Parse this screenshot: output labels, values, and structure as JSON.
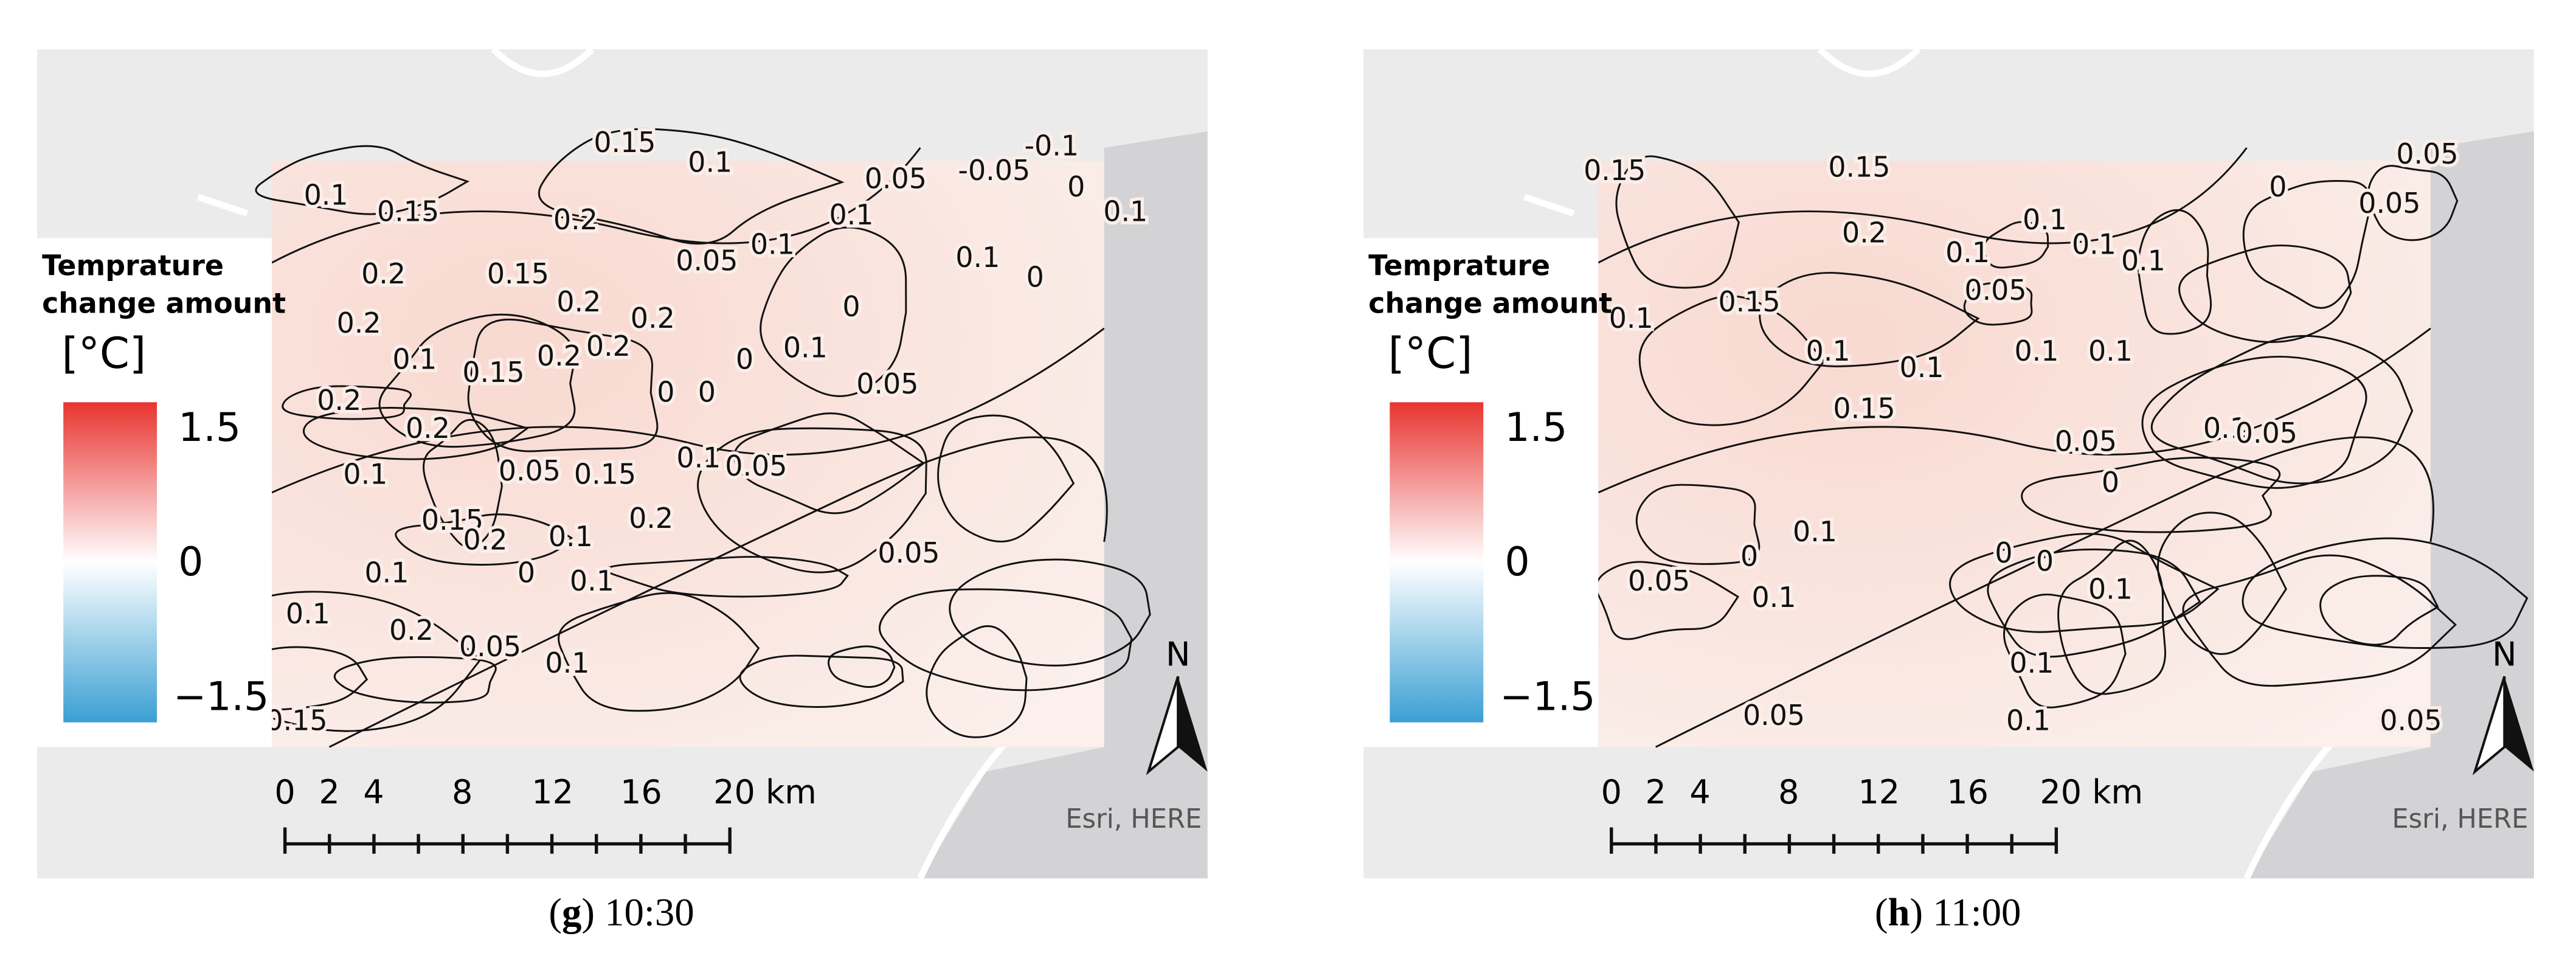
{
  "panels": [
    {
      "caption": [
        "(",
        "g",
        ")",
        " 10:30"
      ],
      "legend": {
        "title": [
          "Temprature",
          "change amount"
        ],
        "unit": "[°C]",
        "ticks": [
          "1.5",
          "0",
          "−1.5"
        ]
      },
      "scale": [
        "0",
        "2",
        "4",
        "8",
        "12",
        "16",
        "20 km"
      ],
      "north": "N",
      "attribution": "Esri, HERE",
      "contour_labels": [
        "0.15",
        "0.1",
        "0.05",
        "-0.05",
        "-0.1",
        "0",
        "0.1",
        "0.1",
        "0.15",
        "0.2",
        "0.2",
        "0.15",
        "0.2",
        "0.2",
        "0.05",
        "0.1",
        "0.1",
        "0.1",
        "0",
        "0",
        "0.2",
        "0.1",
        "0.15",
        "0.2",
        "0.2",
        "0",
        "0.1",
        "0.05",
        "0",
        "0",
        "0.2",
        "0.2",
        "0.1",
        "0.05",
        "0.15",
        "0.2",
        "0.1",
        "0.05",
        "0.15",
        "0.2",
        "0.1",
        "0.1",
        "0",
        "0.1",
        "0.05",
        "0.1",
        "0.2",
        "0.05",
        "0.1",
        "0.15"
      ]
    },
    {
      "caption": [
        "(",
        "h",
        ")",
        " 11:00"
      ],
      "legend": {
        "title": [
          "Temprature",
          "change amount"
        ],
        "unit": "[°C]",
        "ticks": [
          "1.5",
          "0",
          "−1.5"
        ]
      },
      "scale": [
        "0",
        "2",
        "4",
        "8",
        "12",
        "16",
        "20 km"
      ],
      "north": "N",
      "attribution": "Esri, HERE",
      "contour_labels": [
        "0.15",
        "0.15",
        "0",
        "0.05",
        "0.05",
        "0.2",
        "0.1",
        "0.1",
        "0.1",
        "0.1",
        "0.15",
        "0.05",
        "0.1",
        "0.1",
        "0.1",
        "0.1",
        "0.1",
        "0.15",
        "0.05",
        "0.1",
        "0.05",
        "0",
        "0.05",
        "0.1",
        "0",
        "0",
        "0",
        "0.1",
        "0.1",
        "0.1",
        "0.05",
        "0.1",
        "0.05"
      ]
    }
  ]
}
